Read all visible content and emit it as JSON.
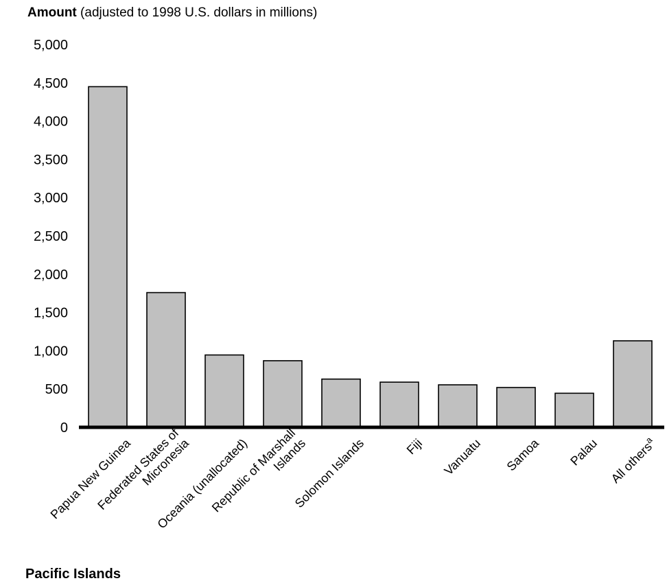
{
  "chart_data": {
    "type": "bar",
    "ylabel_bold": "Amount",
    "ylabel_rest": " (adjusted to 1998 U.S. dollars in millions)",
    "xlabel": "Pacific Islands",
    "categories": [
      [
        "Papua New Guinea"
      ],
      [
        "Federated States of",
        "Micronesia"
      ],
      [
        "Oceania (unallocated)"
      ],
      [
        "Republic of Marshall",
        "Islands"
      ],
      [
        "Solomon Islands"
      ],
      [
        "Fiji"
      ],
      [
        "Vanuatu"
      ],
      [
        "Samoa"
      ],
      [
        "Palau"
      ],
      [
        "All others"
      ]
    ],
    "category_superscripts": [
      "",
      "",
      "",
      "",
      "",
      "",
      "",
      "",
      "",
      "a"
    ],
    "values": [
      4450,
      1760,
      945,
      870,
      630,
      590,
      555,
      520,
      445,
      1130
    ],
    "ylim": [
      0,
      5000
    ],
    "yticks": [
      0,
      500,
      1000,
      1500,
      2000,
      2500,
      3000,
      3500,
      4000,
      4500,
      5000
    ],
    "ytick_labels": [
      "0",
      "500",
      "1,000",
      "1,500",
      "2,000",
      "2,500",
      "3,000",
      "3,500",
      "4,000",
      "4,500",
      "5,000"
    ],
    "bar_color": "#c0c0c0",
    "grid": false
  }
}
